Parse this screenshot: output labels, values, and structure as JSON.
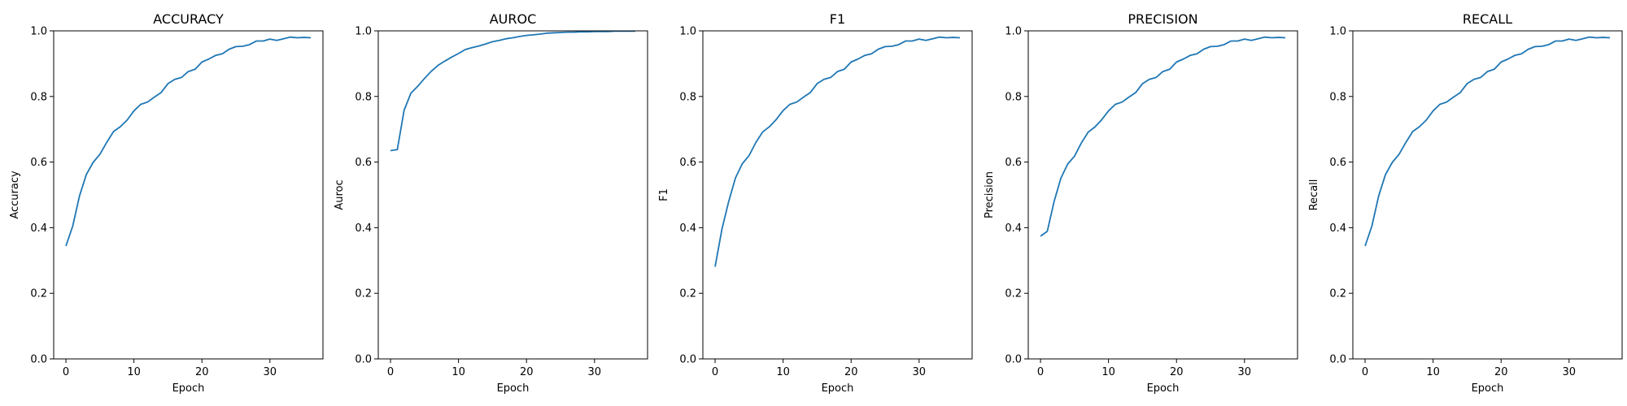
{
  "line_color": "#1f77b4",
  "chart_data": [
    {
      "type": "line",
      "title": "ACCURACY",
      "xlabel": "Epoch",
      "ylabel": "Accuracy",
      "xlim": [
        -1.8,
        37.8
      ],
      "ylim": [
        0,
        1
      ],
      "xticks": [
        0,
        10,
        20,
        30
      ],
      "yticks": [
        0.0,
        0.2,
        0.4,
        0.6,
        0.8,
        1.0
      ],
      "ytick_labels": [
        "0.0",
        "0.2",
        "0.4",
        "0.6",
        "0.8",
        "1.0"
      ],
      "grid": false,
      "x": [
        0,
        1,
        2,
        3,
        4,
        5,
        6,
        7,
        8,
        9,
        10,
        11,
        12,
        13,
        14,
        15,
        16,
        17,
        18,
        19,
        20,
        21,
        22,
        23,
        24,
        25,
        26,
        27,
        28,
        29,
        30,
        31,
        32,
        33,
        34,
        35,
        36
      ],
      "y": [
        0.344,
        0.405,
        0.497,
        0.562,
        0.599,
        0.624,
        0.66,
        0.693,
        0.708,
        0.728,
        0.756,
        0.776,
        0.783,
        0.798,
        0.812,
        0.839,
        0.852,
        0.858,
        0.876,
        0.883,
        0.905,
        0.914,
        0.925,
        0.93,
        0.944,
        0.952,
        0.953,
        0.958,
        0.969,
        0.969,
        0.975,
        0.971,
        0.976,
        0.981,
        0.979,
        0.98,
        0.979
      ]
    },
    {
      "type": "line",
      "title": "AUROC",
      "xlabel": "Epoch",
      "ylabel": "Auroc",
      "xlim": [
        -1.8,
        37.8
      ],
      "ylim": [
        0,
        1
      ],
      "xticks": [
        0,
        10,
        20,
        30
      ],
      "yticks": [
        0.0,
        0.2,
        0.4,
        0.6,
        0.8,
        1.0
      ],
      "ytick_labels": [
        "0.0",
        "0.2",
        "0.4",
        "0.6",
        "0.8",
        "1.0"
      ],
      "grid": false,
      "x": [
        0,
        1,
        2,
        3,
        4,
        5,
        6,
        7,
        8,
        9,
        10,
        11,
        12,
        13,
        14,
        15,
        16,
        17,
        18,
        19,
        20,
        21,
        22,
        23,
        24,
        25,
        26,
        27,
        28,
        29,
        30,
        31,
        32,
        33,
        34,
        35,
        36
      ],
      "y": [
        0.635,
        0.638,
        0.758,
        0.81,
        0.831,
        0.855,
        0.877,
        0.895,
        0.908,
        0.92,
        0.931,
        0.943,
        0.949,
        0.954,
        0.96,
        0.967,
        0.971,
        0.976,
        0.979,
        0.983,
        0.986,
        0.988,
        0.99,
        0.993,
        0.994,
        0.995,
        0.996,
        0.996,
        0.997,
        0.997,
        0.998,
        0.998,
        0.998,
        0.999,
        0.999,
        0.999,
        0.999
      ]
    },
    {
      "type": "line",
      "title": "F1",
      "xlabel": "Epoch",
      "ylabel": "F1",
      "xlim": [
        -1.8,
        37.8
      ],
      "ylim": [
        0,
        1
      ],
      "xticks": [
        0,
        10,
        20,
        30
      ],
      "yticks": [
        0.0,
        0.2,
        0.4,
        0.6,
        0.8,
        1.0
      ],
      "ytick_labels": [
        "0.0",
        "0.2",
        "0.4",
        "0.6",
        "0.8",
        "1.0"
      ],
      "grid": false,
      "x": [
        0,
        1,
        2,
        3,
        4,
        5,
        6,
        7,
        8,
        9,
        10,
        11,
        12,
        13,
        14,
        15,
        16,
        17,
        18,
        19,
        20,
        21,
        22,
        23,
        24,
        25,
        26,
        27,
        28,
        29,
        30,
        31,
        32,
        33,
        34,
        35,
        36
      ],
      "y": [
        0.281,
        0.395,
        0.48,
        0.552,
        0.595,
        0.62,
        0.66,
        0.692,
        0.708,
        0.73,
        0.757,
        0.776,
        0.783,
        0.798,
        0.812,
        0.839,
        0.852,
        0.858,
        0.876,
        0.883,
        0.905,
        0.914,
        0.925,
        0.93,
        0.944,
        0.952,
        0.953,
        0.958,
        0.969,
        0.969,
        0.975,
        0.971,
        0.976,
        0.981,
        0.979,
        0.98,
        0.979
      ]
    },
    {
      "type": "line",
      "title": "PRECISION",
      "xlabel": "Epoch",
      "ylabel": "Precision",
      "xlim": [
        -1.8,
        37.8
      ],
      "ylim": [
        0,
        1
      ],
      "xticks": [
        0,
        10,
        20,
        30
      ],
      "yticks": [
        0.0,
        0.2,
        0.4,
        0.6,
        0.8,
        1.0
      ],
      "ytick_labels": [
        "0.0",
        "0.2",
        "0.4",
        "0.6",
        "0.8",
        "1.0"
      ],
      "grid": false,
      "x": [
        0,
        1,
        2,
        3,
        4,
        5,
        6,
        7,
        8,
        9,
        10,
        11,
        12,
        13,
        14,
        15,
        16,
        17,
        18,
        19,
        20,
        21,
        22,
        23,
        24,
        25,
        26,
        27,
        28,
        29,
        30,
        31,
        32,
        33,
        34,
        35,
        36
      ],
      "y": [
        0.374,
        0.389,
        0.48,
        0.551,
        0.594,
        0.618,
        0.658,
        0.691,
        0.707,
        0.729,
        0.756,
        0.776,
        0.783,
        0.798,
        0.812,
        0.839,
        0.852,
        0.858,
        0.876,
        0.883,
        0.905,
        0.914,
        0.925,
        0.93,
        0.944,
        0.952,
        0.953,
        0.958,
        0.969,
        0.969,
        0.975,
        0.971,
        0.976,
        0.981,
        0.979,
        0.98,
        0.979
      ]
    },
    {
      "type": "line",
      "title": "RECALL",
      "xlabel": "Epoch",
      "ylabel": "Recall",
      "xlim": [
        -1.8,
        37.8
      ],
      "ylim": [
        0,
        1
      ],
      "xticks": [
        0,
        10,
        20,
        30
      ],
      "yticks": [
        0.0,
        0.2,
        0.4,
        0.6,
        0.8,
        1.0
      ],
      "ytick_labels": [
        "0.0",
        "0.2",
        "0.4",
        "0.6",
        "0.8",
        "1.0"
      ],
      "grid": false,
      "x": [
        0,
        1,
        2,
        3,
        4,
        5,
        6,
        7,
        8,
        9,
        10,
        11,
        12,
        13,
        14,
        15,
        16,
        17,
        18,
        19,
        20,
        21,
        22,
        23,
        24,
        25,
        26,
        27,
        28,
        29,
        30,
        31,
        32,
        33,
        34,
        35,
        36
      ],
      "y": [
        0.344,
        0.405,
        0.497,
        0.562,
        0.599,
        0.624,
        0.66,
        0.693,
        0.708,
        0.728,
        0.756,
        0.776,
        0.783,
        0.798,
        0.812,
        0.839,
        0.852,
        0.858,
        0.876,
        0.883,
        0.905,
        0.914,
        0.925,
        0.93,
        0.944,
        0.952,
        0.953,
        0.958,
        0.969,
        0.969,
        0.975,
        0.971,
        0.976,
        0.981,
        0.979,
        0.98,
        0.979
      ]
    }
  ]
}
